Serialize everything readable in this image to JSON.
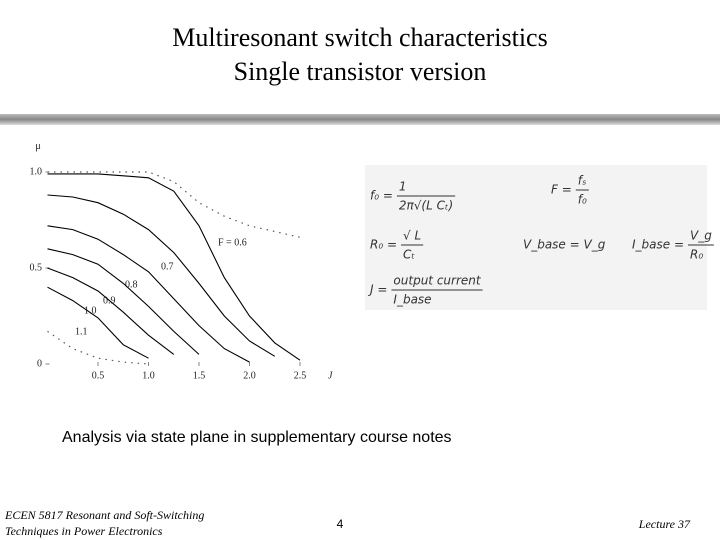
{
  "slide": {
    "title": [
      "Multiresonant switch characteristics",
      "Single transistor version"
    ],
    "caption": "Analysis via state plane in supplementary course notes",
    "footer_left": [
      "ECEN 5817  Resonant and Soft-Switching",
      "Techniques in Power Electronics"
    ],
    "page_number": "4",
    "footer_right": "Lecture 37",
    "formulas": [
      {
        "lhs": "f₀ =",
        "num": "1",
        "den": "2π√(L Cₜ)"
      },
      {
        "lhs": "F =",
        "num": "fₛ",
        "den": "f₀"
      },
      {
        "lhs": "R₀ =",
        "num": "√ L",
        "den": "Cₜ"
      },
      {
        "lhs": "V_base = V_g",
        "num": null,
        "den": null
      },
      {
        "lhs": "I_base =",
        "num": "V_g",
        "den": "R₀"
      },
      {
        "lhs": "J =",
        "num": "output current",
        "den": "I_base"
      }
    ]
  },
  "chart_data": {
    "type": "line",
    "ylabel": "μ",
    "xlabel": "J",
    "x": [
      0,
      0.25,
      0.5,
      0.75,
      1.0,
      1.25,
      1.5,
      1.75,
      2.0,
      2.25,
      2.5
    ],
    "series": [
      {
        "name": "F = 0.6",
        "color": "#000000",
        "values": [
          0.99,
          0.99,
          0.99,
          0.98,
          0.97,
          0.9,
          0.72,
          0.45,
          0.25,
          0.11,
          0.02
        ]
      },
      {
        "name": "0.7",
        "color": "#000000",
        "values": [
          0.88,
          0.87,
          0.84,
          0.78,
          0.7,
          0.58,
          0.42,
          0.25,
          0.12,
          0.04,
          null
        ]
      },
      {
        "name": "0.8",
        "color": "#000000",
        "values": [
          0.72,
          0.7,
          0.65,
          0.57,
          0.48,
          0.34,
          0.2,
          0.08,
          0.01,
          null,
          null
        ]
      },
      {
        "name": "0.9",
        "color": "#000000",
        "values": [
          0.6,
          0.57,
          0.52,
          0.42,
          0.3,
          0.17,
          0.05,
          null,
          null,
          null,
          null
        ]
      },
      {
        "name": "1.0",
        "color": "#000000",
        "values": [
          0.5,
          0.45,
          0.38,
          0.27,
          0.15,
          0.05,
          null,
          null,
          null,
          null,
          null
        ]
      },
      {
        "name": "1.1",
        "color": "#000000",
        "values": [
          0.4,
          0.33,
          0.24,
          0.1,
          0.03,
          null,
          null,
          null,
          null,
          null,
          null
        ]
      },
      {
        "color": "#555555",
        "dotted": true,
        "values": [
          1.0,
          1.0,
          1.0,
          1.0,
          1.0,
          0.95,
          0.84,
          0.77,
          0.72,
          0.69,
          0.66
        ]
      },
      {
        "color": "#555555",
        "dotted": true,
        "values": [
          0.17,
          0.08,
          0.03,
          0.01,
          0.0,
          null,
          null,
          null,
          null,
          null,
          null
        ]
      }
    ],
    "xlim": [
      0,
      2.7
    ],
    "ylim": [
      0,
      1.1
    ],
    "xticks": [
      0.5,
      {
        "value": 1,
        "label": "1.0"
      },
      1.5,
      {
        "value": 2,
        "label": "2.0"
      },
      2.5
    ],
    "yticks": [
      0,
      0.5,
      {
        "value": 1,
        "label": "1.0"
      }
    ]
  }
}
